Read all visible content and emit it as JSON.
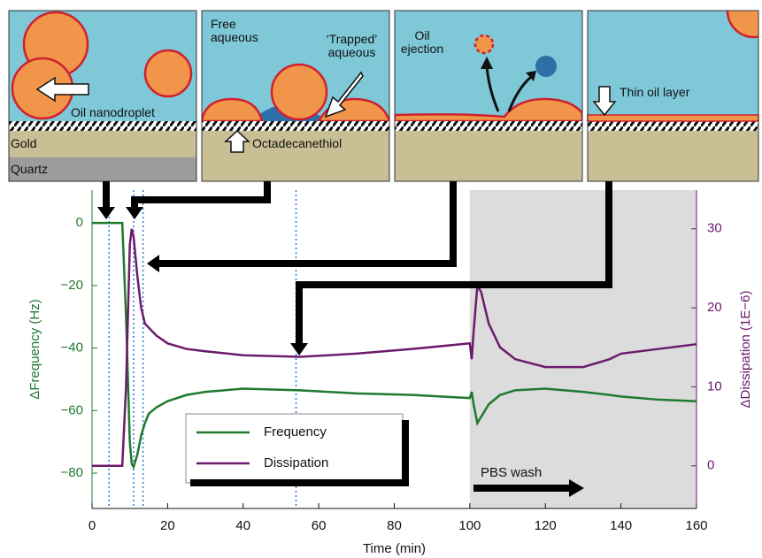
{
  "chart_data": {
    "type": "line",
    "x_label": "Time (min)",
    "y_label": "ΔFrequency (Hz)",
    "y2_label": "ΔDissipation (1E−6)",
    "x": [
      0,
      8,
      9,
      10,
      10.5,
      11,
      12,
      13,
      14,
      15,
      17,
      20,
      25,
      30,
      40,
      55,
      70,
      85,
      100,
      100.5,
      101,
      102,
      103,
      105,
      108,
      112,
      120,
      130,
      137,
      140,
      150,
      160
    ],
    "series": [
      {
        "name": "Frequency",
        "color": "#1e7a2e",
        "values": [
          0,
          0,
          -30,
          -70,
          -77,
          -78,
          -74,
          -68,
          -64,
          -61,
          -59,
          -57,
          -55,
          -54,
          -53,
          -53.5,
          -54.5,
          -55,
          -56,
          -54,
          -58,
          -64,
          -62,
          -58,
          -55,
          -53.5,
          -53,
          -54,
          -55,
          -55.5,
          -56.5,
          -57
        ]
      },
      {
        "name": "Dissipation",
        "color": "#6b1b6b",
        "axis": "y2",
        "values": [
          0,
          0,
          10,
          28,
          30,
          29,
          24,
          20,
          18,
          17.5,
          16.5,
          15.5,
          14.8,
          14.5,
          14,
          13.8,
          14.2,
          14.8,
          15.5,
          13.5,
          17,
          22.8,
          22,
          18,
          15,
          13.5,
          12.5,
          12.5,
          13.5,
          14.2,
          14.8,
          15.4
        ]
      }
    ],
    "xlim": [
      0,
      160
    ],
    "xticks": [
      0,
      20,
      40,
      60,
      80,
      100,
      120,
      140,
      160
    ],
    "ylim": [
      -91.3,
      10.5
    ],
    "yticks": [
      0,
      {
        "value": -20,
        "label": "−20"
      },
      {
        "value": -40,
        "label": "−40"
      },
      {
        "value": -60,
        "label": "−60"
      },
      {
        "value": -80,
        "label": "−80"
      }
    ],
    "y2lim": [
      -5.4,
      34.9
    ],
    "y2ticks": [
      0,
      10,
      20,
      30
    ],
    "marker_x": [
      4.5,
      11,
      13.5,
      54
    ],
    "shaded_x": [
      100,
      160
    ],
    "shaded_label": "PBS wash",
    "annotations": [
      "Oil nanodroplet",
      "Gold",
      "Quartz",
      "Free aqueous",
      "‘Trapped’ aqueous",
      "Octadecanethiol",
      "Oil ejection",
      "Thin oil layer"
    ]
  }
}
